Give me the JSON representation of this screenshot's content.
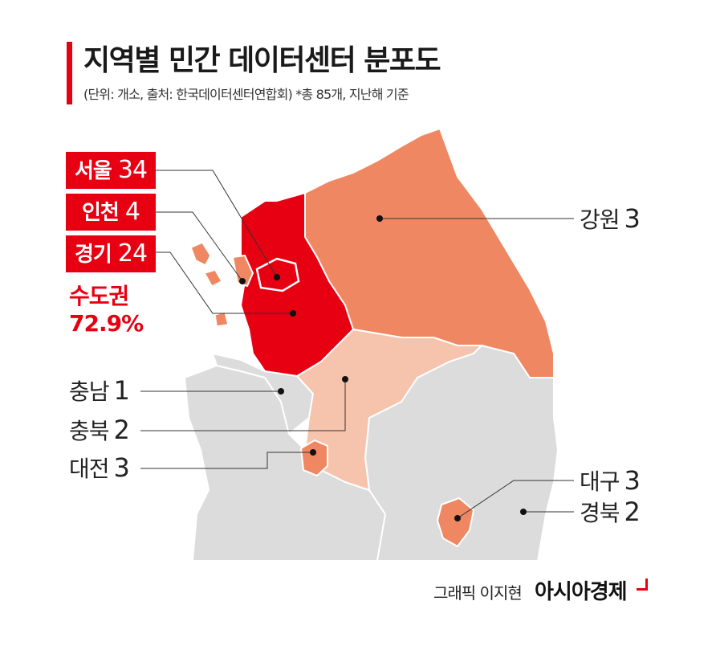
{
  "header": {
    "title": "지역별 민간 데이터센터 분포도",
    "subtitle": "(단위: 개소, 출처: 한국데이터센터연합회) *총 85개, 지난해 기준"
  },
  "capital_area": {
    "seoul": {
      "name": "서울",
      "count": "34"
    },
    "incheon": {
      "name": "인천",
      "count": "4"
    },
    "gyeonggi": {
      "name": "경기",
      "count": "24"
    },
    "share_label": "수도권",
    "share_value": "72.9%"
  },
  "regions": {
    "gangwon": {
      "name": "강원",
      "count": "3"
    },
    "chungnam": {
      "name": "충남",
      "count": "1"
    },
    "chungbuk": {
      "name": "충북",
      "count": "2"
    },
    "daejeon": {
      "name": "대전",
      "count": "3"
    },
    "daegu": {
      "name": "대구",
      "count": "3"
    },
    "gyeongbuk": {
      "name": "경북",
      "count": "2"
    }
  },
  "footer": {
    "credit": "그래픽 이지현",
    "brand": "아시아경제"
  },
  "colors": {
    "accent_red": "#e60012",
    "high": "#e60012",
    "medium": "#ef8862",
    "low": "#f6c3ad",
    "none": "#dcdcdc",
    "leader_line": "#333333"
  }
}
